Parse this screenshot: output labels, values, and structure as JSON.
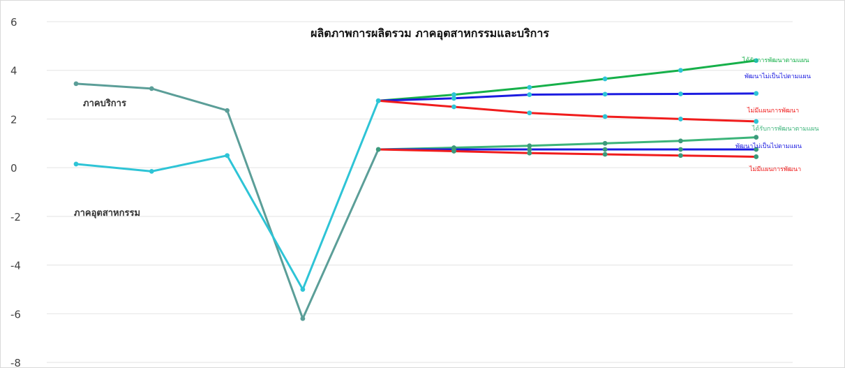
{
  "chart_data": {
    "type": "line",
    "title": "ผลิตภาพการผลิตรวม ภาคอุตสาหกรรมและบริการ",
    "ylim": [
      -8,
      6
    ],
    "yticks": [
      6,
      4,
      2,
      0,
      -2,
      -4,
      -6,
      -8
    ],
    "ytick_labels": [
      "6",
      "4",
      "2",
      "0",
      "-2",
      "-4",
      "-6",
      "-8"
    ],
    "grid": true,
    "x": [
      0,
      1,
      2,
      3,
      4,
      5,
      6,
      7,
      8,
      9
    ],
    "annotations": {
      "services": "ภาคบริการ",
      "industry": "ภาคอุตสาหกรรม"
    },
    "series": [
      {
        "name": "",
        "color": "#5b9e98",
        "x": [
          0,
          1,
          2,
          3,
          4
        ],
        "values": [
          3.45,
          3.25,
          2.35,
          -6.2,
          0.75
        ]
      },
      {
        "name": "",
        "color": "#2ec4d6",
        "x": [
          0,
          1,
          2,
          3,
          4
        ],
        "values": [
          0.15,
          -0.15,
          0.5,
          -5.0,
          2.75
        ]
      },
      {
        "name": "ได้รับการพัฒนาตามแผน",
        "color": "#16b04a",
        "x": [
          4,
          5,
          6,
          7,
          8,
          9
        ],
        "values": [
          2.75,
          3.0,
          3.3,
          3.65,
          4.0,
          4.4
        ]
      },
      {
        "name": "พัฒนาไม่เป็นไปตามแผน",
        "color": "#1b1be0",
        "x": [
          4,
          5,
          6,
          7,
          8,
          9
        ],
        "values": [
          2.75,
          2.85,
          3.0,
          3.02,
          3.03,
          3.05
        ]
      },
      {
        "name": "ไม่มีแผนการพัฒนา",
        "color": "#f01c1c",
        "x": [
          4,
          5,
          6,
          7,
          8,
          9
        ],
        "values": [
          2.75,
          2.5,
          2.25,
          2.1,
          2.0,
          1.9
        ]
      },
      {
        "name": "ได้รับการพัฒนาตามแผน",
        "color": "#3cb47a",
        "x": [
          4,
          5,
          6,
          7,
          8,
          9
        ],
        "values": [
          0.75,
          0.82,
          0.9,
          1.0,
          1.1,
          1.25
        ]
      },
      {
        "name": "พัฒนาไม่เป็นไปตามแผน",
        "color": "#1b1be0",
        "x": [
          4,
          5,
          6,
          7,
          8,
          9
        ],
        "values": [
          0.75,
          0.75,
          0.75,
          0.75,
          0.75,
          0.75
        ]
      },
      {
        "name": "ไม่มีแผนการพัฒนา",
        "color": "#f01c1c",
        "x": [
          4,
          5,
          6,
          7,
          8,
          9
        ],
        "values": [
          0.75,
          0.68,
          0.6,
          0.55,
          0.5,
          0.45
        ]
      }
    ],
    "marker_colors": {
      "services_scenarios": [
        "#2ec4d6",
        "#2ec4d6",
        "#2ec4d6",
        "#2e9bd6",
        "#2ec4d6"
      ],
      "industry_scenarios": [
        "#3c9a7c",
        "#3c9a7c",
        "#3c9a7c",
        "#3c9a7c",
        "#3c9a7c"
      ]
    }
  }
}
